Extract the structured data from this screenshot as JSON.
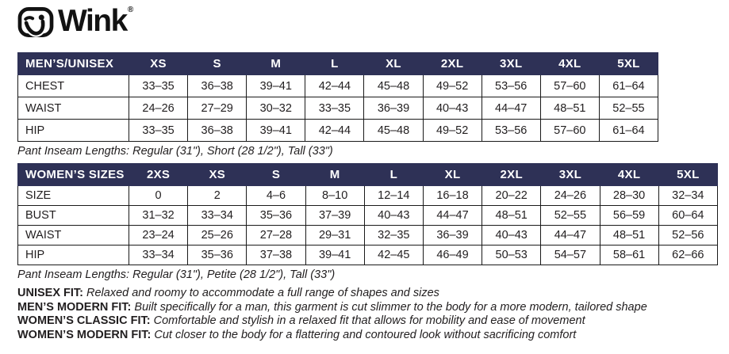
{
  "brand": {
    "name": "Wink",
    "registered": "®",
    "icon": "wink-face-icon"
  },
  "colors": {
    "header_bg": "#2e3156",
    "header_text": "#ffffff",
    "table_border": "#1a1a1a",
    "body_text": "#211e1f"
  },
  "mens_table": {
    "label": "MEN’S/UNISEX",
    "columns": [
      "XS",
      "S",
      "M",
      "L",
      "XL",
      "2XL",
      "3XL",
      "4XL",
      "5XL"
    ],
    "rows": [
      {
        "label": "CHEST",
        "values": [
          "33–35",
          "36–38",
          "39–41",
          "42–44",
          "45–48",
          "49–52",
          "53–56",
          "57–60",
          "61–64"
        ]
      },
      {
        "label": "WAIST",
        "values": [
          "24–26",
          "27–29",
          "30–32",
          "33–35",
          "36–39",
          "40–43",
          "44–47",
          "48–51",
          "52–55"
        ]
      },
      {
        "label": "HIP",
        "values": [
          "33–35",
          "36–38",
          "39–41",
          "42–44",
          "45–48",
          "49–52",
          "53–56",
          "57–60",
          "61–64"
        ]
      }
    ],
    "note": "Pant Inseam Lengths: Regular (31\"), Short (28 1/2\"), Tall (33\")"
  },
  "womens_table": {
    "label": "WOMEN’S SIZES",
    "columns": [
      "2XS",
      "XS",
      "S",
      "M",
      "L",
      "XL",
      "2XL",
      "3XL",
      "4XL",
      "5XL"
    ],
    "rows": [
      {
        "label": "SIZE",
        "values": [
          "0",
          "2",
          "4–6",
          "8–10",
          "12–14",
          "16–18",
          "20–22",
          "24–26",
          "28–30",
          "32–34"
        ]
      },
      {
        "label": "BUST",
        "values": [
          "31–32",
          "33–34",
          "35–36",
          "37–39",
          "40–43",
          "44–47",
          "48–51",
          "52–55",
          "56–59",
          "60–64"
        ]
      },
      {
        "label": "WAIST",
        "values": [
          "23–24",
          "25–26",
          "27–28",
          "29–31",
          "32–35",
          "36–39",
          "40–43",
          "44–47",
          "48–51",
          "52–56"
        ]
      },
      {
        "label": "HIP",
        "values": [
          "33–34",
          "35–36",
          "37–38",
          "39–41",
          "42–45",
          "46–49",
          "50–53",
          "54–57",
          "58–61",
          "62–66"
        ]
      }
    ],
    "note": "Pant Inseam Lengths: Regular (31\"), Petite (28 1/2\"), Tall (33\")"
  },
  "fit_notes": [
    {
      "label": "UNISEX FIT:",
      "text": "Relaxed and roomy to accommodate a full range of shapes and sizes"
    },
    {
      "label": "MEN’S MODERN FIT:",
      "text": "Built specifically for a man, this garment is cut slimmer to the body for a more modern, tailored shape"
    },
    {
      "label": "WOMEN’S CLASSIC FIT:",
      "text": "Comfortable and stylish in a relaxed fit that allows for mobility and ease of movement"
    },
    {
      "label": "WOMEN’S MODERN FIT:",
      "text": "Cut closer to the body for a flattering and contoured look without sacrificing comfort"
    }
  ]
}
